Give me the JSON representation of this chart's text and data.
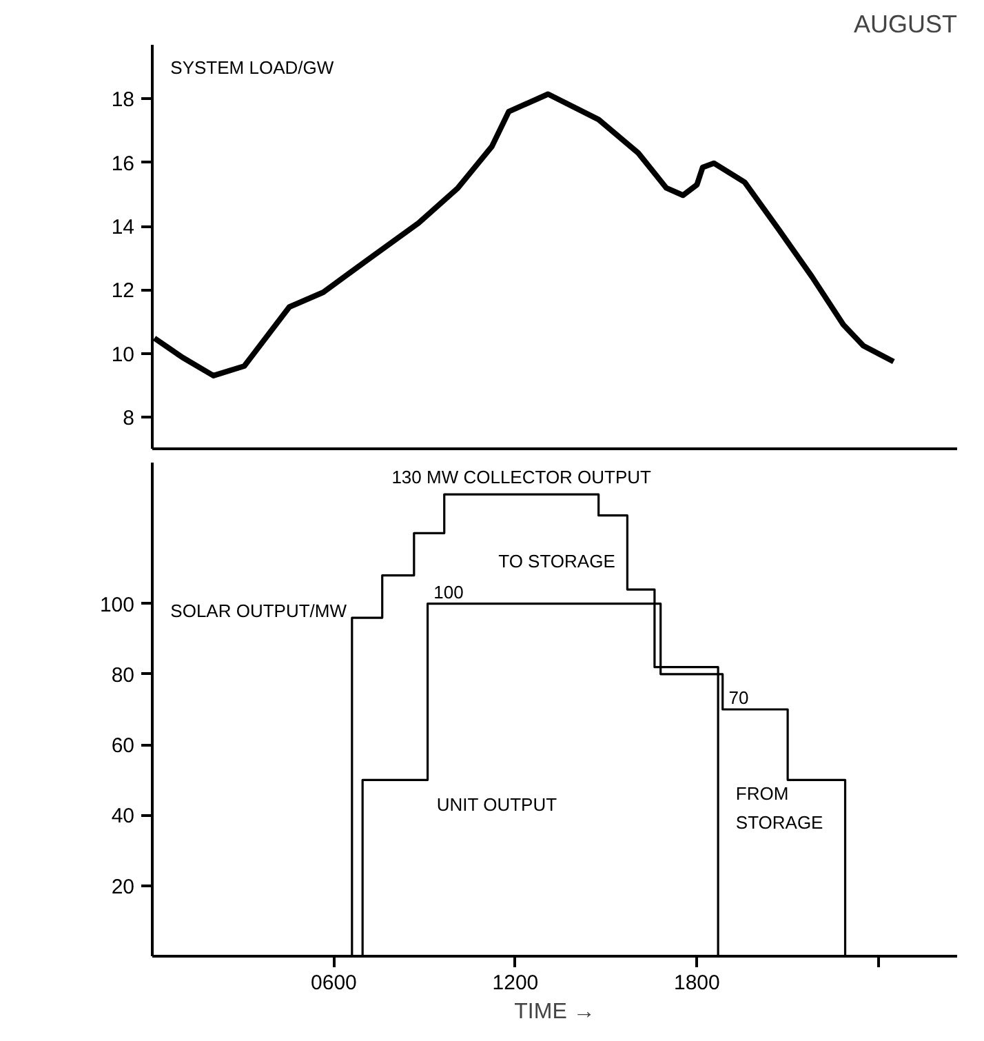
{
  "chart_data": [
    {
      "type": "line",
      "title": "AUGUST",
      "ylabel": "SYSTEM LOAD/GW",
      "xlim": [
        0,
        2660
      ],
      "ylim": [
        7,
        19.7
      ],
      "yticks": [
        8,
        10,
        12,
        14,
        16,
        18
      ],
      "tick_labels": "y",
      "grid": false,
      "x": [
        7,
        100,
        202,
        304,
        453,
        565,
        713,
        880,
        1010,
        1122,
        1178,
        1308,
        1475,
        1606,
        1699,
        1754,
        1800,
        1819,
        1856,
        1958,
        2070,
        2181,
        2284,
        2350,
        2450
      ],
      "series": [
        {
          "color": "#000000",
          "values": [
            10.48,
            9.87,
            9.3,
            9.6,
            11.46,
            11.92,
            12.95,
            14.1,
            15.2,
            16.5,
            17.6,
            18.15,
            17.35,
            16.3,
            15.2,
            14.97,
            15.3,
            15.85,
            15.98,
            15.38,
            13.9,
            12.4,
            10.9,
            10.24,
            9.74
          ]
        }
      ]
    },
    {
      "type": "step",
      "ylabel": "SOLAR OUTPUT/MW",
      "xlabel": "TIME →",
      "xlim": [
        0,
        2660
      ],
      "xticks": [
        {
          "value": 600,
          "label": "0600"
        },
        1200,
        1800,
        {
          "value": 2400,
          "label": null
        }
      ],
      "ylim": [
        0,
        140
      ],
      "yticks": [
        20,
        40,
        60,
        80,
        100
      ],
      "grid": false,
      "series": [
        {
          "name": "130 MW COLLECTOR OUTPUT",
          "color": "#000000",
          "x": [
            0,
            660,
            760,
            865,
            965,
            1475,
            1570,
            1660,
            1870
          ],
          "values": [
            0,
            96,
            108,
            120,
            131,
            125,
            104,
            82,
            0
          ]
        },
        {
          "name": "UNIT OUTPUT",
          "color": "#000000",
          "x": [
            0,
            695,
            910,
            1680,
            1885,
            2100,
            2290
          ],
          "values": [
            0,
            50,
            100,
            80,
            70,
            50,
            0
          ],
          "value_labels": [
            null,
            null,
            "100",
            null,
            "70",
            null,
            null
          ]
        }
      ],
      "annotations": [
        "TO STORAGE",
        "FROM STORAGE"
      ]
    }
  ]
}
